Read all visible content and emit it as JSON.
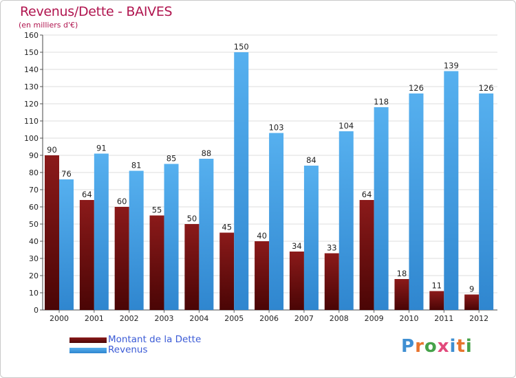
{
  "header": {
    "title": "Revenus/Dette - BAIVES",
    "subtitle": "(en milliers d'€)"
  },
  "legend": {
    "items": [
      {
        "label": "Montant de la Dette",
        "color": "#6e0b0b"
      },
      {
        "label": "Revenus",
        "color": "#4aa3e6"
      }
    ]
  },
  "logo": {
    "text": "Proxiti",
    "colors": [
      "#3f8fd2",
      "#e8742d",
      "#46a24a",
      "#e24a7c",
      "#3f8fd2",
      "#e8742d",
      "#46a24a"
    ]
  },
  "chart_data": {
    "type": "bar",
    "title": "Revenus/Dette - BAIVES",
    "ylabel": "(en milliers d'€)",
    "xlabel": "",
    "ylim": [
      0,
      160
    ],
    "ytick_step": 10,
    "grid": true,
    "legend_position": "bottom-left",
    "categories": [
      "2000",
      "2001",
      "2002",
      "2003",
      "2004",
      "2005",
      "2006",
      "2007",
      "2008",
      "2009",
      "2010",
      "2011",
      "2012"
    ],
    "series": [
      {
        "name": "Montant de la Dette",
        "color": "#6e0b0b",
        "values": [
          90,
          64,
          60,
          55,
          50,
          45,
          40,
          34,
          33,
          64,
          18,
          11,
          9
        ],
        "labels": [
          "90",
          "64",
          "60",
          "55",
          "50",
          "45",
          "40",
          "34",
          "33",
          "64",
          "18",
          "11",
          "9"
        ]
      },
      {
        "name": "Revenus",
        "color": "#4aa3e6",
        "values": [
          76,
          91,
          81,
          85,
          88,
          150,
          103,
          84,
          104,
          118,
          126,
          139,
          126
        ],
        "labels": [
          "76",
          "91",
          "81",
          "85",
          "88",
          "150",
          "103",
          "84",
          "104",
          "118",
          "126",
          "139",
          "126"
        ]
      }
    ]
  }
}
